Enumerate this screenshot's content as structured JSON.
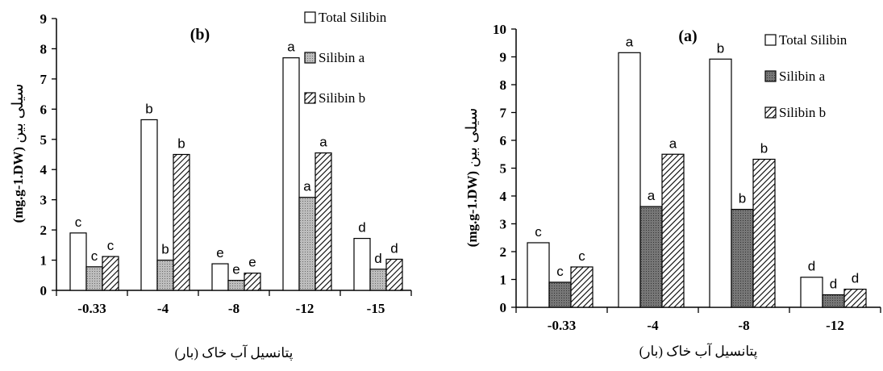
{
  "chart_data": [
    {
      "type": "bar",
      "panel_label": "(b)",
      "categories": [
        "-0.33",
        "-4",
        "-8",
        "-12",
        "-15"
      ],
      "ylim": [
        0,
        9
      ],
      "yticks": [
        0,
        1,
        2,
        3,
        4,
        5,
        6,
        7,
        8,
        9
      ],
      "ylabel_top": "سیلی بین",
      "ylabel_bottom": "(mg.g-1.DW)",
      "xlabel": "پتانسیل آب خاک (بار)",
      "legend_position": "top-right",
      "series": [
        {
          "name": "Total Silibin",
          "values": [
            1.9,
            5.65,
            0.88,
            7.7,
            1.72
          ],
          "letters": [
            "c",
            "b",
            "e",
            "a",
            "d"
          ],
          "fill": "#ffffff"
        },
        {
          "name": "Silibin a",
          "values": [
            0.78,
            1.0,
            0.33,
            3.08,
            0.7
          ],
          "letters": [
            "c",
            "b",
            "e",
            "a",
            "d"
          ],
          "fill": "#b3b3b3"
        },
        {
          "name": "Silibin b",
          "values": [
            1.12,
            4.5,
            0.57,
            4.55,
            1.03
          ],
          "letters": [
            "c",
            "b",
            "e",
            "a",
            "d"
          ],
          "fill": "hatch"
        }
      ]
    },
    {
      "type": "bar",
      "panel_label": "(a)",
      "categories": [
        "-0.33",
        "-4",
        "-8",
        "-12"
      ],
      "ylim": [
        0,
        10
      ],
      "yticks": [
        0,
        1,
        2,
        3,
        4,
        5,
        6,
        7,
        8,
        9,
        10
      ],
      "ylabel_top": "سیلی بین",
      "ylabel_bottom": "(mg.g-1.DW)",
      "xlabel": "پتانسیل آب خاک (بار)",
      "legend_position": "top-right",
      "series": [
        {
          "name": "Total Silibin",
          "values": [
            2.32,
            9.15,
            8.92,
            1.08
          ],
          "letters": [
            "c",
            "a",
            "b",
            "d"
          ],
          "fill": "#ffffff"
        },
        {
          "name": "Silibin a",
          "values": [
            0.9,
            3.62,
            3.52,
            0.45
          ],
          "letters": [
            "c",
            "a",
            "b",
            "d"
          ],
          "fill": "#6e6e6e"
        },
        {
          "name": "Silibin b",
          "values": [
            1.45,
            5.5,
            5.32,
            0.65
          ],
          "letters": [
            "c",
            "a",
            "b",
            "d"
          ],
          "fill": "hatch"
        }
      ]
    }
  ]
}
